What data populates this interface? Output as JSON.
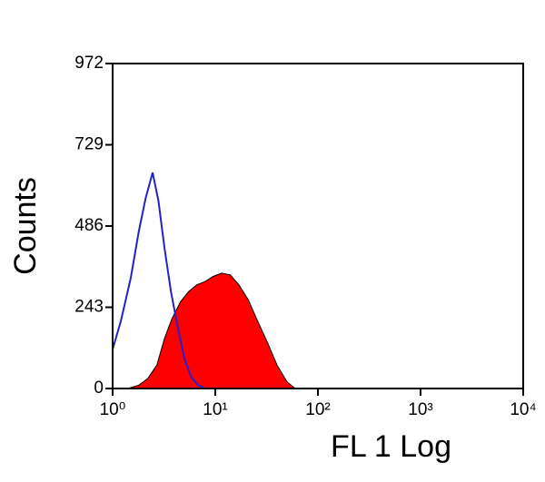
{
  "chart_data": {
    "type": "histogram-overlay",
    "y_label": "Counts",
    "x_label": "FL 1 Log",
    "xscale": "log",
    "xlim": [
      1,
      10000
    ],
    "xticks": [
      {
        "value": 1,
        "label": "10⁰"
      },
      {
        "value": 10,
        "label": "10¹"
      },
      {
        "value": 100,
        "label": "10²"
      },
      {
        "value": 1000,
        "label": "10³"
      },
      {
        "value": 10000,
        "label": "10⁴"
      }
    ],
    "ylim": [
      0,
      972
    ],
    "yticks": [
      0,
      243,
      486,
      729,
      972
    ],
    "series": [
      {
        "color": "#ff0000",
        "filled": true,
        "x": [
          1.4,
          1.8,
          2.2,
          2.7,
          3.2,
          3.8,
          4.6,
          5.5,
          6.6,
          8,
          9.5,
          11.5,
          14,
          17,
          21,
          26,
          32,
          40,
          50,
          60
        ],
        "values": [
          0,
          10,
          30,
          70,
          150,
          210,
          260,
          290,
          310,
          320,
          335,
          345,
          340,
          310,
          265,
          200,
          140,
          70,
          20,
          0
        ]
      },
      {
        "color": "#2222cc",
        "filled": false,
        "x": [
          1,
          1.2,
          1.5,
          1.8,
          2.1,
          2.45,
          2.8,
          3.2,
          3.7,
          4.3,
          5,
          5.8,
          6.8,
          8
        ],
        "values": [
          117,
          200,
          330,
          470,
          570,
          646,
          560,
          420,
          290,
          185,
          90,
          35,
          10,
          0
        ]
      }
    ]
  }
}
